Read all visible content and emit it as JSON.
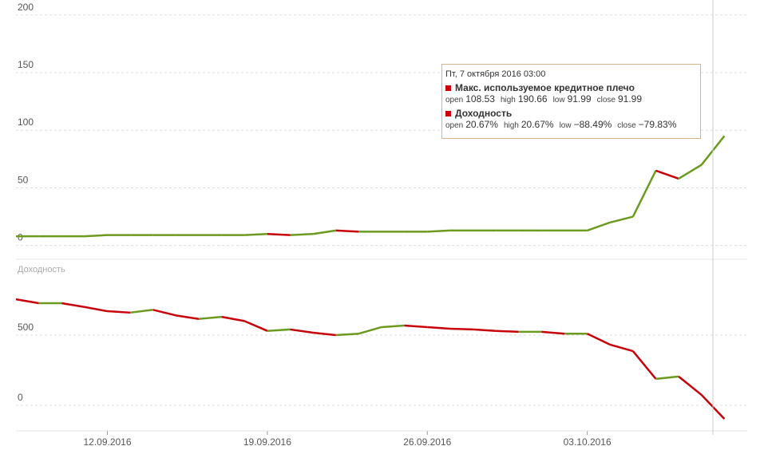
{
  "chart_data": [
    {
      "type": "line",
      "up_color": "#6b9a1f",
      "down_color": "#c8000a",
      "x": [
        "08.09.2016",
        "09.09.2016",
        "10.09.2016",
        "11.09.2016",
        "12.09.2016",
        "13.09.2016",
        "14.09.2016",
        "15.09.2016",
        "16.09.2016",
        "17.09.2016",
        "18.09.2016",
        "19.09.2016",
        "20.09.2016",
        "21.09.2016",
        "22.09.2016",
        "23.09.2016",
        "24.09.2016",
        "25.09.2016",
        "26.09.2016",
        "27.09.2016",
        "28.09.2016",
        "29.09.2016",
        "30.09.2016",
        "01.10.2016",
        "02.10.2016",
        "03.10.2016",
        "04.10.2016",
        "05.10.2016",
        "06.10.2016",
        "07.10.2016",
        "08.10.2016",
        "09.10.2016"
      ],
      "values": [
        8,
        8,
        8,
        8,
        9,
        9,
        9,
        9,
        9,
        9,
        9,
        10,
        9,
        10,
        13,
        12,
        12,
        12,
        12,
        13,
        13,
        13,
        13,
        13,
        13,
        13,
        20,
        25,
        65,
        58,
        70,
        95
      ],
      "xlim": [
        "08.09.2016",
        "10.10.2016"
      ],
      "ylim": [
        -12,
        213
      ],
      "yticks": [
        0,
        50,
        100,
        150,
        200
      ],
      "grid": true
    },
    {
      "type": "line",
      "title": "Доходность",
      "up_color": "#6b9a1f",
      "down_color": "#c8000a",
      "x": [
        "08.09.2016",
        "09.09.2016",
        "10.09.2016",
        "11.09.2016",
        "12.09.2016",
        "13.09.2016",
        "14.09.2016",
        "15.09.2016",
        "16.09.2016",
        "17.09.2016",
        "18.09.2016",
        "19.09.2016",
        "20.09.2016",
        "21.09.2016",
        "22.09.2016",
        "23.09.2016",
        "24.09.2016",
        "25.09.2016",
        "26.09.2016",
        "27.09.2016",
        "28.09.2016",
        "29.09.2016",
        "30.09.2016",
        "01.10.2016",
        "02.10.2016",
        "03.10.2016",
        "04.10.2016",
        "05.10.2016",
        "06.10.2016",
        "07.10.2016",
        "08.10.2016",
        "09.10.2016"
      ],
      "values": [
        755,
        727,
        727,
        700,
        670,
        660,
        680,
        640,
        615,
        630,
        600,
        530,
        540,
        517,
        500,
        510,
        557,
        568,
        557,
        545,
        540,
        530,
        523,
        523,
        510,
        510,
        432,
        386,
        188,
        205,
        74,
        -97
      ],
      "xlim": [
        "08.09.2016",
        "10.10.2016"
      ],
      "xticks": [
        "12.09.2016",
        "19.09.2016",
        "26.09.2016",
        "03.10.2016"
      ],
      "ylim": [
        -182,
        926
      ],
      "yticks": [
        0,
        500
      ],
      "grid": true,
      "tooltip": {
        "date": "Пт, 7 октября 2016 03:00",
        "rows": [
          {
            "name": "Макс. используемое кредитное плечо",
            "color": "#c8000a",
            "items": [
              {
                "label": "open",
                "value": 108.53
              },
              {
                "label": "high",
                "value": 190.66
              },
              {
                "label": "low",
                "value": 91.99
              },
              {
                "label": "close",
                "value": 91.99
              }
            ]
          },
          {
            "name": "Доходность",
            "color": "#c8000a",
            "items": [
              {
                "label": "open",
                "value": 20.67,
                "value_label": "20.67%"
              },
              {
                "label": "high",
                "value": 20.67,
                "value_label": "20.67%"
              },
              {
                "label": "low",
                "value": -88.49,
                "value_label": "−88.49%"
              },
              {
                "label": "close",
                "value": -79.83,
                "value_label": "−79.83%"
              }
            ]
          }
        ]
      }
    }
  ]
}
